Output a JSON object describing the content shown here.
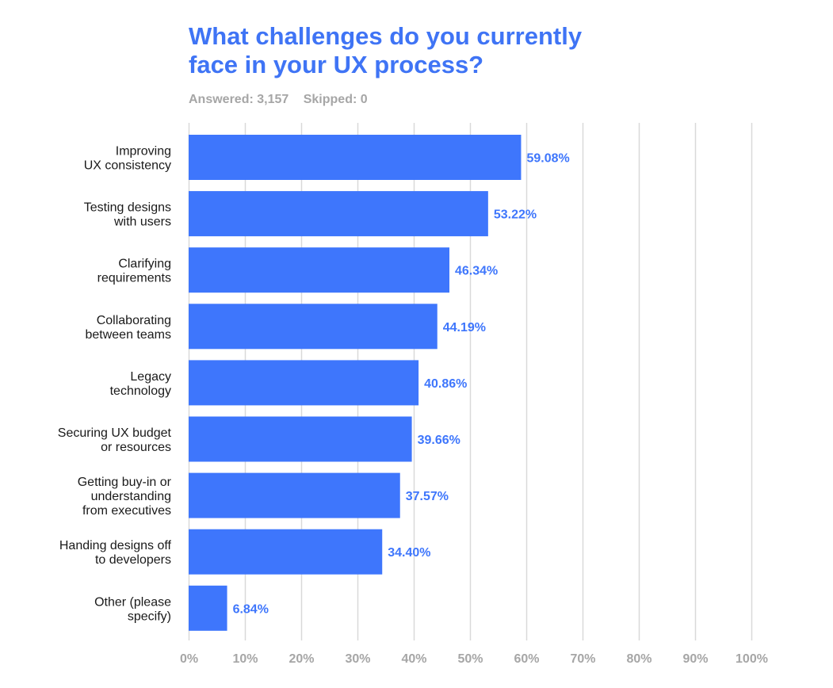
{
  "header": {
    "title_line1": "What challenges do you currently",
    "title_line2": "face in your UX process?",
    "answered": "Answered: 3,157",
    "skipped": "Skipped: 0"
  },
  "colors": {
    "bar": "#3e76fc",
    "label": "#3e76fc",
    "grid": "#d9d9d9",
    "axis_text": "#a6a6a6",
    "category_text": "#1a1a1a",
    "title": "#3f74f5"
  },
  "chart_data": {
    "type": "bar",
    "orientation": "horizontal",
    "title": "What challenges do you currently face in your UX process?",
    "categories": [
      [
        "Improving",
        "UX consistency"
      ],
      [
        "Testing designs",
        "with users"
      ],
      [
        "Clarifying",
        "requirements"
      ],
      [
        "Collaborating",
        "between teams"
      ],
      [
        "Legacy",
        "technology"
      ],
      [
        "Securing UX budget",
        "or resources"
      ],
      [
        "Getting buy-in or",
        "understanding",
        "from executives"
      ],
      [
        "Handing designs off",
        "to developers"
      ],
      [
        "Other (please",
        "specify)"
      ]
    ],
    "values": [
      59.08,
      53.22,
      46.34,
      44.19,
      40.86,
      39.66,
      37.57,
      34.4,
      6.84
    ],
    "value_labels": [
      "59.08%",
      "53.22%",
      "46.34%",
      "44.19%",
      "40.86%",
      "39.66%",
      "37.57%",
      "34.40%",
      "6.84%"
    ],
    "xlim": [
      0,
      100
    ],
    "xticks": [
      "0%",
      "10%",
      "20%",
      "30%",
      "40%",
      "50%",
      "60%",
      "70%",
      "80%",
      "90%",
      "100%"
    ],
    "grid": true
  }
}
